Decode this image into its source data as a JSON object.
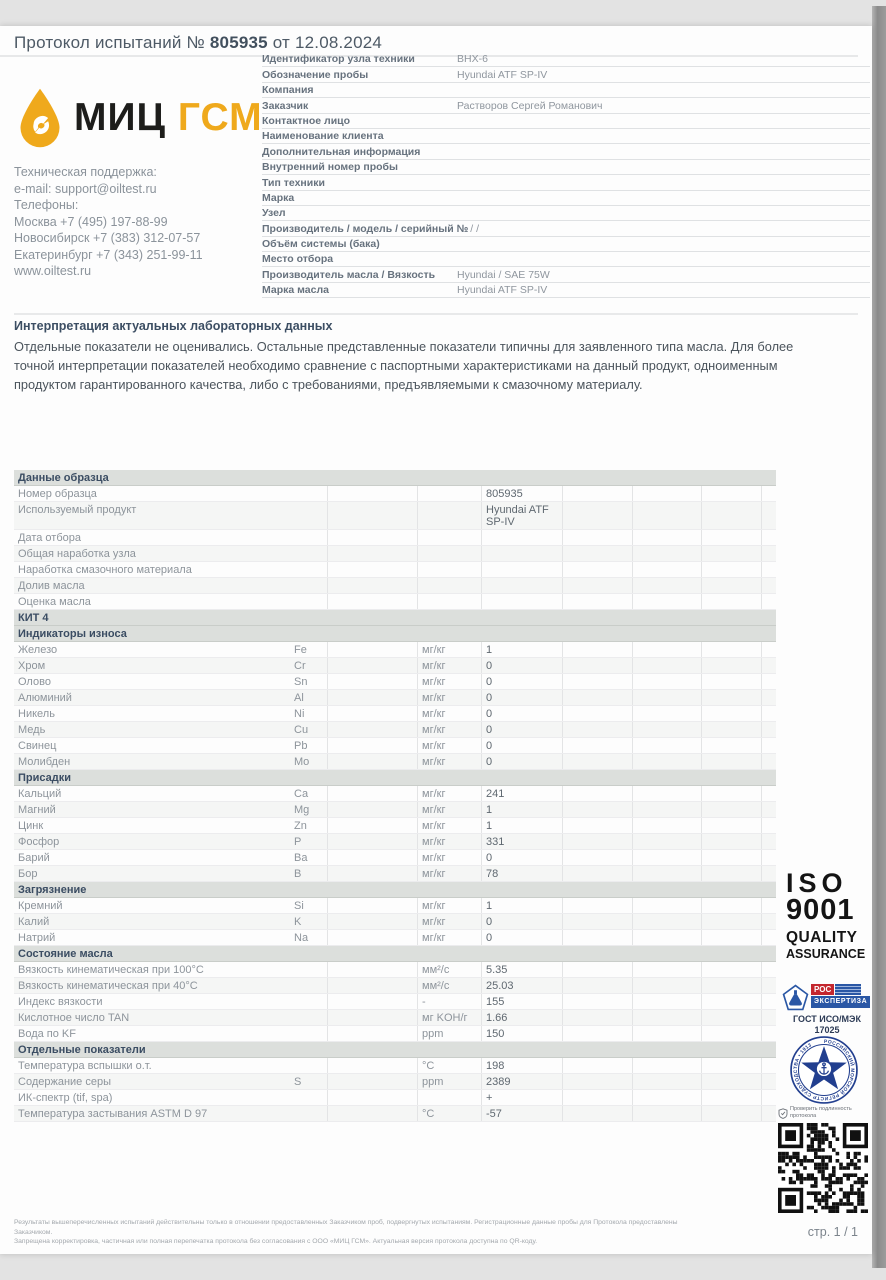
{
  "title": {
    "prefix": "Протокол испытаний №",
    "number": "805935",
    "date_text": "от 12.08.2024"
  },
  "logo": {
    "text_black": "МИЦ",
    "text_yellow": "ГСМ",
    "accent_color": "#efa91c",
    "drop_icon": "oil-drop"
  },
  "contacts": {
    "lines": [
      "Техническая поддержка:",
      "e-mail: support@oiltest.ru",
      "Телефоны:",
      "Москва +7 (495) 197-88-99",
      "Новосибирск +7 (383) 312-07-57",
      "Екатеринбург +7 (343) 251-99-11",
      "www.oiltest.ru"
    ]
  },
  "fields": [
    {
      "label": "Идентификатор узла техники",
      "value": "ВНХ-6"
    },
    {
      "label": "Обозначение пробы",
      "value": "Hyundai ATF SP-IV"
    },
    {
      "label": "Компания",
      "value": ""
    },
    {
      "label": "Заказчик",
      "value": "Растворов Сергей Романович"
    },
    {
      "label": "Контактное лицо",
      "value": ""
    },
    {
      "label": "Наименование клиента",
      "value": ""
    },
    {
      "label": "Дополнительная информация",
      "value": ""
    },
    {
      "label": "Внутренний номер пробы",
      "value": ""
    },
    {
      "label": "Тип техники",
      "value": ""
    },
    {
      "label": "Марка",
      "value": ""
    },
    {
      "label": "Узел",
      "value": ""
    },
    {
      "label": "Производитель / модель / серийный №",
      "value": "/ /"
    },
    {
      "label": "Объём системы (бака)",
      "value": ""
    },
    {
      "label": "Место отбора",
      "value": ""
    },
    {
      "label": "Производитель масла / Вязкость",
      "value": "Hyundai / SAE 75W"
    },
    {
      "label": "Марка масла",
      "value": "Hyundai ATF SP-IV"
    }
  ],
  "interpretation": {
    "heading": "Интерпретация актуальных лабораторных данных",
    "body": "Отдельные показатели не оценивались.  Остальные представленные показатели типичны для заявленного типа масла.  Для более точной интерпретации показателей необходимо сравнение с паспортными характеристиками на данный продукт, одноименным продуктом гарантированного качества, либо с требованиями, предъявляемыми к смазочному материалу."
  },
  "table": {
    "sections": [
      {
        "header": "Данные образца",
        "rows": [
          {
            "name": "Номер образца",
            "symbol": "",
            "unit": "",
            "value": "805935"
          },
          {
            "name": "Используемый продукт",
            "symbol": "",
            "unit": "",
            "value": "Hyundai ATF SP-IV"
          },
          {
            "name": "Дата отбора",
            "symbol": "",
            "unit": "",
            "value": ""
          },
          {
            "name": "Общая наработка узла",
            "symbol": "",
            "unit": "",
            "value": ""
          },
          {
            "name": "Наработка смазочного материала",
            "symbol": "",
            "unit": "",
            "value": ""
          },
          {
            "name": "Долив масла",
            "symbol": "",
            "unit": "",
            "value": ""
          },
          {
            "name": "Оценка масла",
            "symbol": "",
            "unit": "",
            "value": ""
          }
        ]
      },
      {
        "header": "КИТ 4",
        "rows": []
      },
      {
        "header": "Индикаторы износа",
        "rows": [
          {
            "name": "Железо",
            "symbol": "Fe",
            "unit": "мг/кг",
            "value": "1"
          },
          {
            "name": "Хром",
            "symbol": "Cr",
            "unit": "мг/кг",
            "value": "0"
          },
          {
            "name": "Олово",
            "symbol": "Sn",
            "unit": "мг/кг",
            "value": "0"
          },
          {
            "name": "Алюминий",
            "symbol": "Al",
            "unit": "мг/кг",
            "value": "0"
          },
          {
            "name": "Никель",
            "symbol": "Ni",
            "unit": "мг/кг",
            "value": "0"
          },
          {
            "name": "Медь",
            "symbol": "Cu",
            "unit": "мг/кг",
            "value": "0"
          },
          {
            "name": "Свинец",
            "symbol": "Pb",
            "unit": "мг/кг",
            "value": "0"
          },
          {
            "name": "Молибден",
            "symbol": "Mo",
            "unit": "мг/кг",
            "value": "0"
          }
        ]
      },
      {
        "header": "Присадки",
        "rows": [
          {
            "name": "Кальций",
            "symbol": "Ca",
            "unit": "мг/кг",
            "value": "241"
          },
          {
            "name": "Магний",
            "symbol": "Mg",
            "unit": "мг/кг",
            "value": "1"
          },
          {
            "name": "Цинк",
            "symbol": "Zn",
            "unit": "мг/кг",
            "value": "1"
          },
          {
            "name": "Фосфор",
            "symbol": "P",
            "unit": "мг/кг",
            "value": "331"
          },
          {
            "name": "Барий",
            "symbol": "Ba",
            "unit": "мг/кг",
            "value": "0"
          },
          {
            "name": "Бор",
            "symbol": "B",
            "unit": "мг/кг",
            "value": "78"
          }
        ]
      },
      {
        "header": "Загрязнение",
        "rows": [
          {
            "name": "Кремний",
            "symbol": "Si",
            "unit": "мг/кг",
            "value": "1"
          },
          {
            "name": "Калий",
            "symbol": "K",
            "unit": "мг/кг",
            "value": "0"
          },
          {
            "name": "Натрий",
            "symbol": "Na",
            "unit": "мг/кг",
            "value": "0"
          }
        ]
      },
      {
        "header": "Состояние масла",
        "rows": [
          {
            "name": "Вязкость кинематическая при 100°C",
            "symbol": "",
            "unit": "мм²/с",
            "value": "5.35"
          },
          {
            "name": "Вязкость кинематическая при 40°C",
            "symbol": "",
            "unit": "мм²/с",
            "value": "25.03"
          },
          {
            "name": "Индекс вязкости",
            "symbol": "",
            "unit": "-",
            "value": "155"
          },
          {
            "name": "Кислотное число TAN",
            "symbol": "",
            "unit": "мг KOH/г",
            "value": "1.66"
          },
          {
            "name": "Вода по KF",
            "symbol": "",
            "unit": "ppm",
            "value": "150"
          }
        ]
      },
      {
        "header": "Отдельные показатели",
        "rows": [
          {
            "name": "Температура вспышки о.т.",
            "symbol": "",
            "unit": "°C",
            "value": "198"
          },
          {
            "name": "Содержание серы",
            "symbol": "S",
            "unit": "ppm",
            "value": "2389"
          },
          {
            "name": "ИК-спектр (tif, spa)",
            "symbol": "",
            "unit": "",
            "value": "+"
          },
          {
            "name": "Температура застывания ASTM D 97",
            "symbol": "",
            "unit": "°C",
            "value": "-57"
          }
        ]
      }
    ]
  },
  "badges": {
    "iso": {
      "line1": "ISO",
      "line2": "9001",
      "line3": "QUALITY",
      "line4": "ASSURANCE"
    },
    "ros": {
      "word_top": "РОС",
      "word_main": "ЭКСПЕРТИЗА",
      "gost_line1": "ГОСТ ИСО/МЭК",
      "gost_line2": "17025"
    },
    "emblem": {
      "ring_text": "РОССИЙСКИЙ МОРСКОЙ РЕГИСТР СУДОХОДСТВА • 1913"
    }
  },
  "qr": {
    "caption": "Проверить подлинность протокола"
  },
  "footer": {
    "line1": "Результаты вышеперечисленных испытаний действительны только в отношении предоставленных Заказчиком проб, подвергнутых испытаниям. Регистрационные данные пробы для Протокола предоставлены Заказчиком.",
    "line2": "Запрещена корректировка, частичная или полная перепечатка протокола без согласования с ООО «МИЦ ГСМ». Актуальная версия протокола доступна по QR-коду.",
    "page_label": "стр. 1 / 1"
  }
}
